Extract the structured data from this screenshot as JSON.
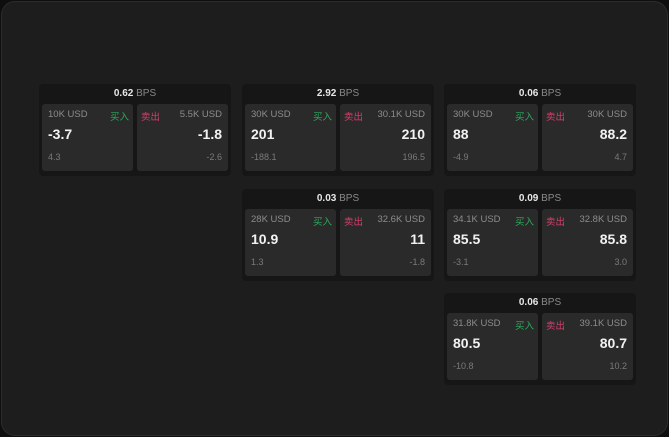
{
  "unit": "BPS",
  "buy_label": "买入",
  "sell_label": "卖出",
  "colors": {
    "buy": "#2eaa5c",
    "sell": "#d83d6b"
  },
  "cards": [
    {
      "spread": "0.62",
      "buy": {
        "size": "10K USD",
        "price": "-3.7",
        "change": "4.3"
      },
      "sell": {
        "size": "5.5K USD",
        "price": "-1.8",
        "change": "-2.6"
      }
    },
    {
      "spread": "2.92",
      "buy": {
        "size": "30K USD",
        "price": "201",
        "change": "-188.1"
      },
      "sell": {
        "size": "30.1K USD",
        "price": "210",
        "change": "196.5"
      }
    },
    {
      "spread": "0.06",
      "buy": {
        "size": "30K USD",
        "price": "88",
        "change": "-4.9"
      },
      "sell": {
        "size": "30K USD",
        "price": "88.2",
        "change": "4.7"
      }
    },
    {
      "spread": "0.03",
      "buy": {
        "size": "28K USD",
        "price": "10.9",
        "change": "1.3"
      },
      "sell": {
        "size": "32.6K USD",
        "price": "11",
        "change": "-1.8"
      }
    },
    {
      "spread": "0.09",
      "buy": {
        "size": "34.1K USD",
        "price": "85.5",
        "change": "-3.1"
      },
      "sell": {
        "size": "32.8K USD",
        "price": "85.8",
        "change": "3.0"
      }
    },
    {
      "spread": "0.06",
      "buy": {
        "size": "31.8K USD",
        "price": "80.5",
        "change": "-10.8"
      },
      "sell": {
        "size": "39.1K USD",
        "price": "80.7",
        "change": "10.2"
      }
    }
  ]
}
